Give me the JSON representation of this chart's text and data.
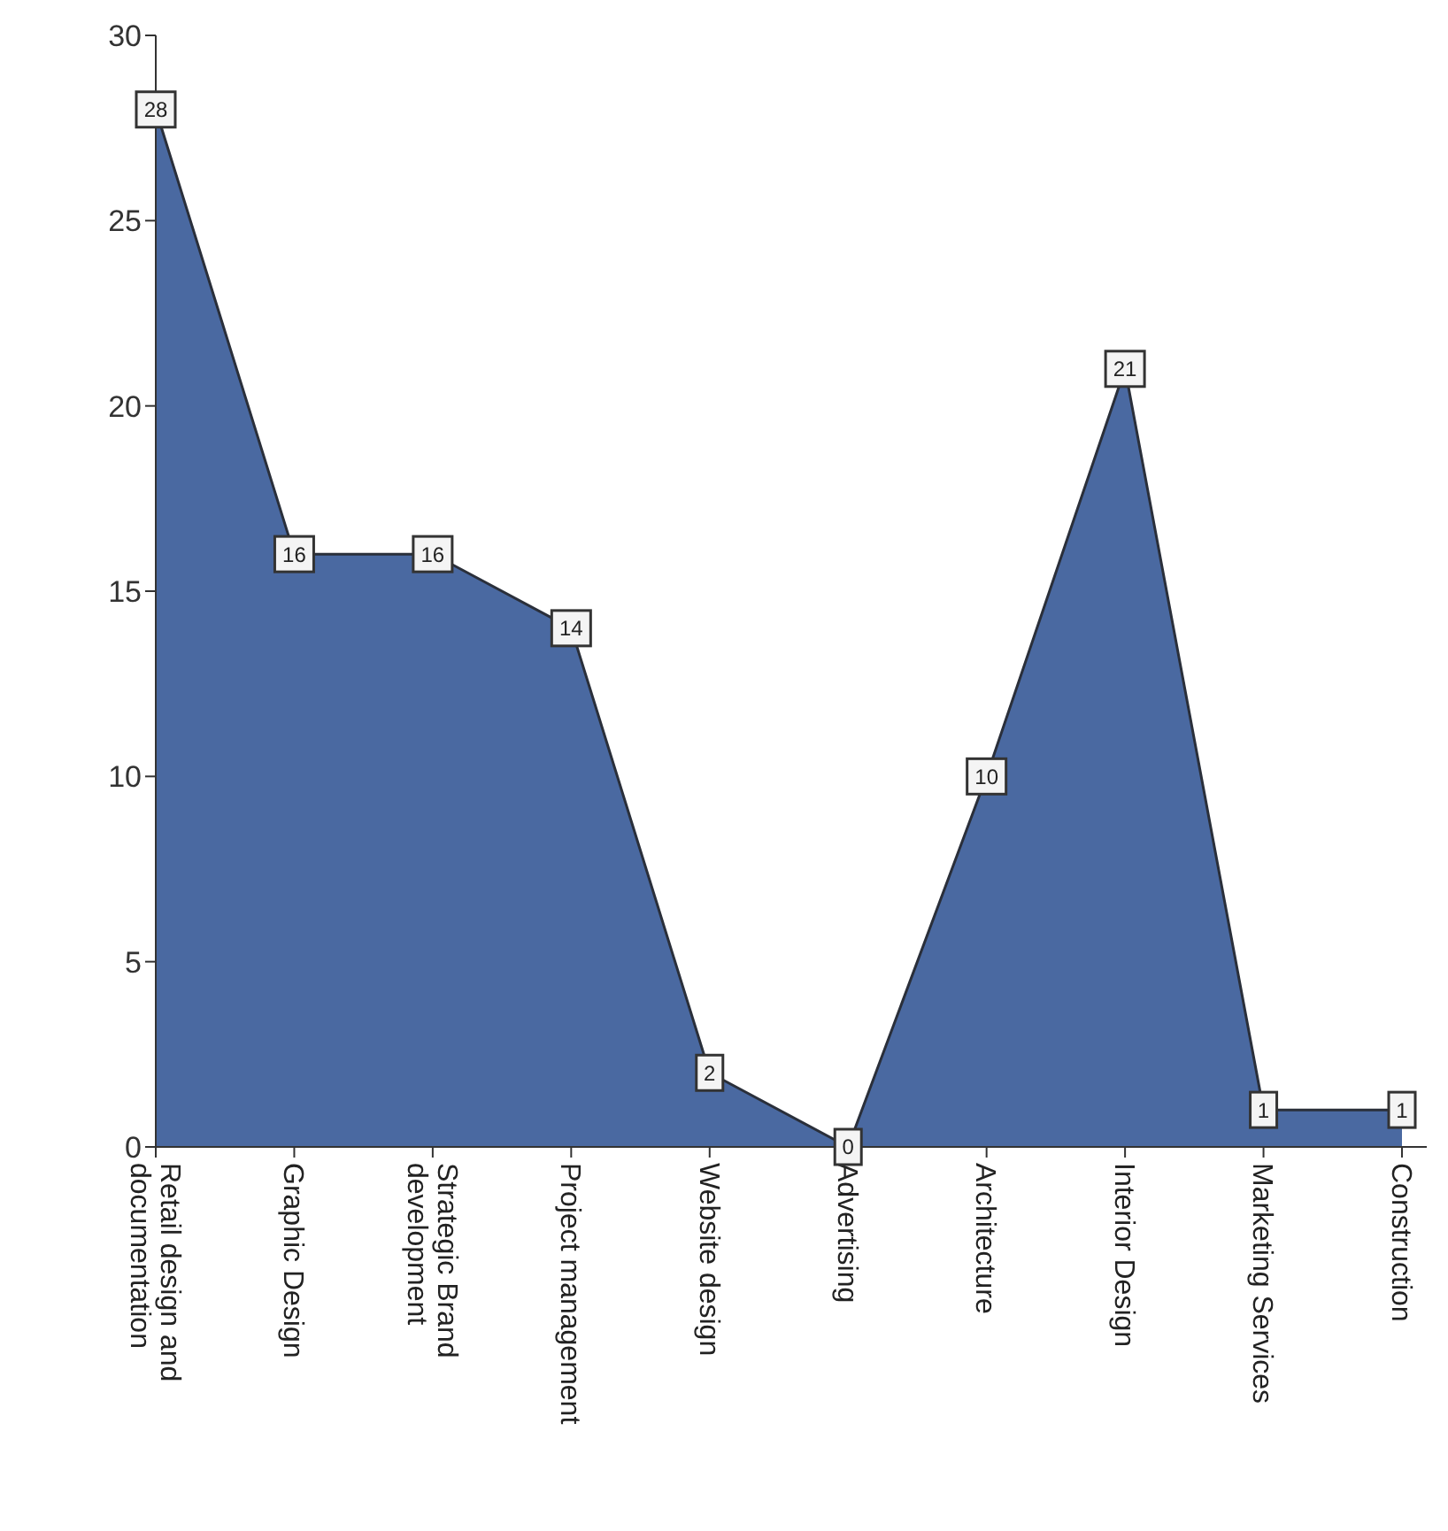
{
  "chart_data": {
    "type": "area",
    "categories": [
      "Retail design and documentation",
      "Graphic Design",
      "Strategic Brand development",
      "Project management",
      "Website design",
      "Advertising",
      "Architecture",
      "Interior Design",
      "Marketing Services",
      "Construction"
    ],
    "values": [
      28,
      16,
      16,
      14,
      2,
      0,
      10,
      21,
      1,
      1
    ],
    "color": "#4a69a1",
    "ylim": [
      0,
      30
    ],
    "yticks": [
      0,
      5,
      10,
      15,
      20,
      25,
      30
    ],
    "data_labels": true,
    "grid": false
  }
}
